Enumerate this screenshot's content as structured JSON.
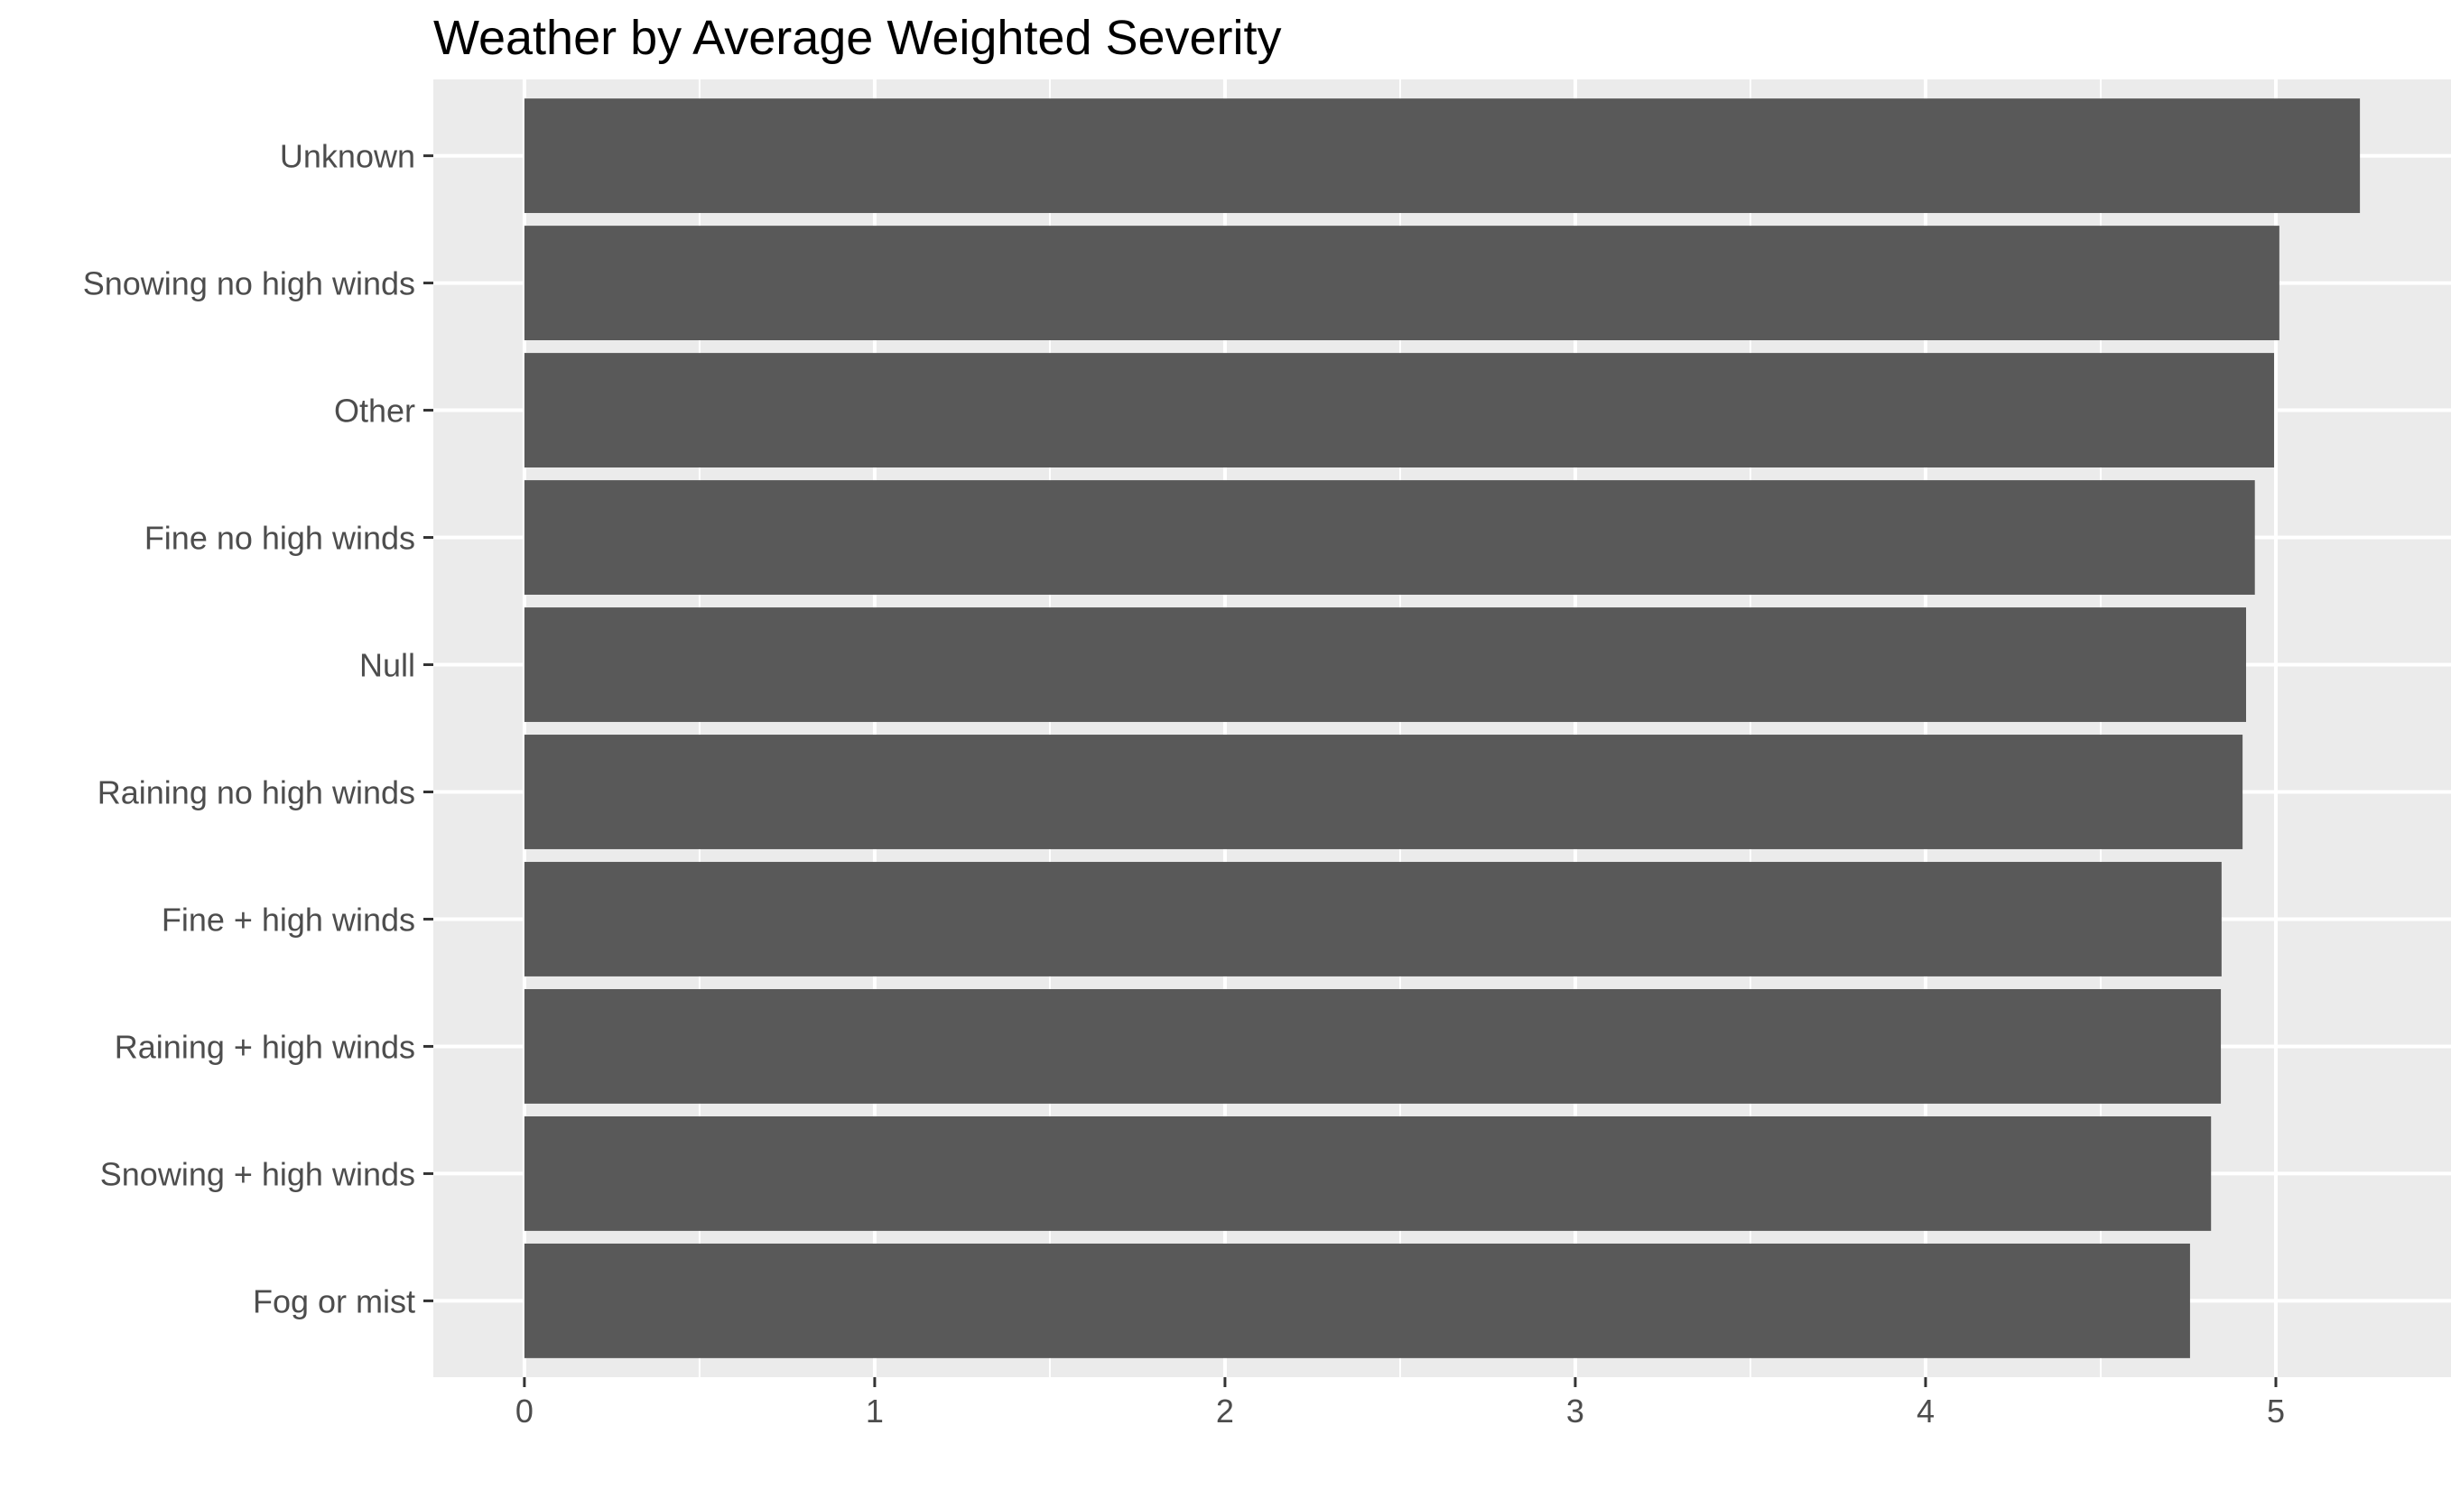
{
  "chart_data": {
    "type": "bar",
    "orientation": "horizontal",
    "title": "Weather by Average Weighted Severity",
    "xlabel": "",
    "ylabel": "",
    "categories": [
      "Unknown",
      "Snowing no high winds",
      "Other",
      "Fine no high winds",
      "Null",
      "Raining no high winds",
      "Fine + high winds",
      "Raining + high winds",
      "Snowing + high winds",
      "Fog or mist"
    ],
    "values": [
      5.24,
      5.01,
      4.995,
      4.94,
      4.915,
      4.905,
      4.845,
      4.843,
      4.815,
      4.755
    ],
    "xlim": [
      -0.26,
      5.5
    ],
    "x_ticks": [
      0,
      1,
      2,
      3,
      4,
      5
    ],
    "x_tick_labels": [
      "0",
      "1",
      "2",
      "3",
      "4",
      "5"
    ],
    "grid": true,
    "legend": "none",
    "colors": {
      "bar": "#595959",
      "panel": "#EBEBEB",
      "grid": "#FFFFFF",
      "tick_label": "#4D4D4D",
      "tick_mark": "#333333",
      "title": "#000000"
    }
  }
}
